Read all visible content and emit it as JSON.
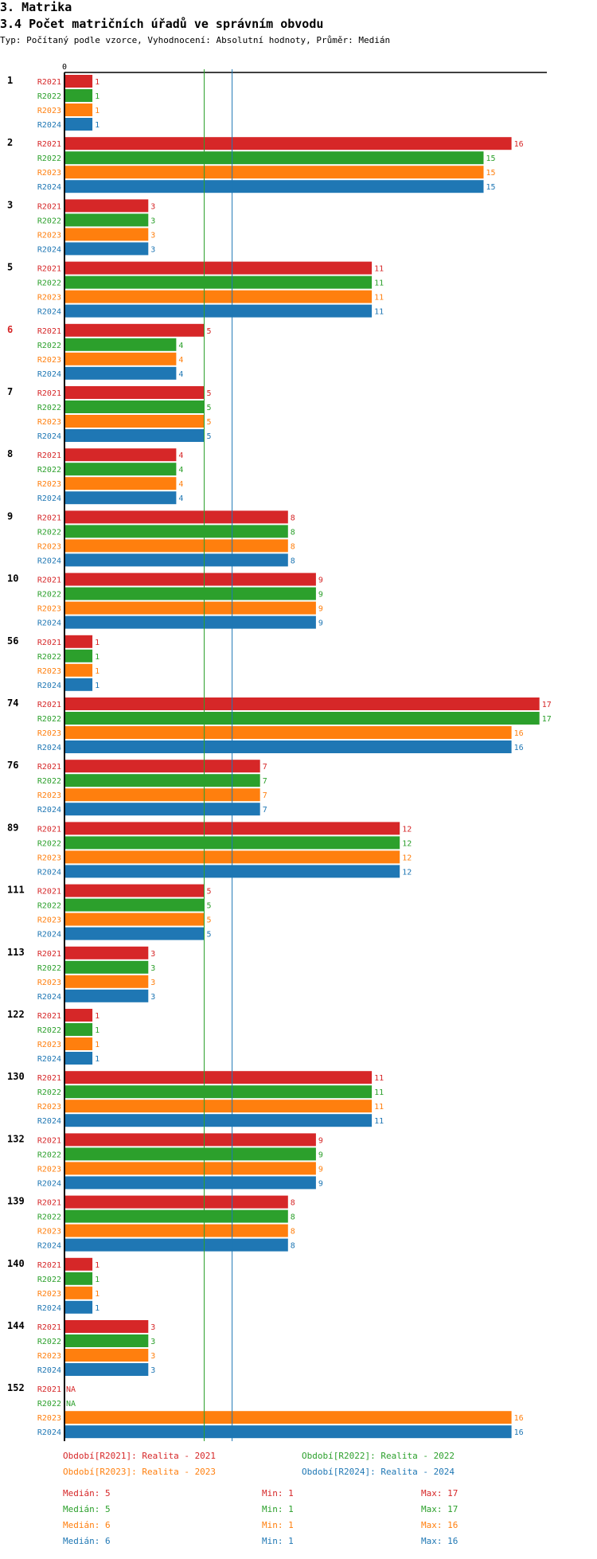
{
  "header": {
    "section": "3. Matrika",
    "title": "3.4 Počet matričních úřadů ve správním obvodu",
    "subtitle": "Typ: Počítaný podle vzorce, Vyhodnocení: Absolutní hodnoty, Průměr: Medián"
  },
  "colors": {
    "R2021": "#d62728",
    "R2022": "#2ca02c",
    "R2023": "#ff7f0e",
    "R2024": "#1f77b4",
    "highlight": "#d62728"
  },
  "chart_data": {
    "type": "bar",
    "orientation": "horizontal",
    "title": "3.4 Počet matričních úřadů ve správním obvodu",
    "axis_zero_label": "0",
    "xlim": [
      0,
      17
    ],
    "categories": [
      "1",
      "2",
      "3",
      "5",
      "6",
      "7",
      "8",
      "9",
      "10",
      "56",
      "74",
      "76",
      "89",
      "111",
      "113",
      "122",
      "130",
      "132",
      "139",
      "140",
      "144",
      "152"
    ],
    "highlighted_category": "6",
    "series": [
      {
        "name": "R2021",
        "values": [
          1,
          16,
          3,
          11,
          5,
          5,
          4,
          8,
          9,
          1,
          17,
          7,
          12,
          5,
          3,
          1,
          11,
          9,
          8,
          1,
          3,
          null
        ]
      },
      {
        "name": "R2022",
        "values": [
          1,
          15,
          3,
          11,
          4,
          5,
          4,
          8,
          9,
          1,
          17,
          7,
          12,
          5,
          3,
          1,
          11,
          9,
          8,
          1,
          3,
          null
        ]
      },
      {
        "name": "R2023",
        "values": [
          1,
          15,
          3,
          11,
          4,
          5,
          4,
          8,
          9,
          1,
          16,
          7,
          12,
          5,
          3,
          1,
          11,
          9,
          8,
          1,
          3,
          16
        ]
      },
      {
        "name": "R2024",
        "values": [
          1,
          15,
          3,
          11,
          4,
          5,
          4,
          8,
          9,
          1,
          16,
          7,
          12,
          5,
          3,
          1,
          11,
          9,
          8,
          1,
          3,
          16
        ]
      }
    ],
    "na_label": "NA",
    "reference_lines": [
      {
        "name": "Median R2022",
        "value": 5,
        "series": "R2022"
      },
      {
        "name": "Median R2024",
        "value": 6,
        "series": "R2024"
      }
    ]
  },
  "legend": [
    {
      "key": "R2021",
      "label": "Období[R2021]: Realita - 2021"
    },
    {
      "key": "R2022",
      "label": "Období[R2022]: Realita - 2022"
    },
    {
      "key": "R2023",
      "label": "Období[R2023]: Realita - 2023"
    },
    {
      "key": "R2024",
      "label": "Období[R2024]: Realita - 2024"
    }
  ],
  "stats": [
    {
      "key": "R2021",
      "median": "Medián: 5",
      "min": "Min: 1",
      "max": "Max: 17"
    },
    {
      "key": "R2022",
      "median": "Medián: 5",
      "min": "Min: 1",
      "max": "Max: 17"
    },
    {
      "key": "R2023",
      "median": "Medián: 6",
      "min": "Min: 1",
      "max": "Max: 16"
    },
    {
      "key": "R2024",
      "median": "Medián: 6",
      "min": "Min: 1",
      "max": "Max: 16"
    }
  ]
}
